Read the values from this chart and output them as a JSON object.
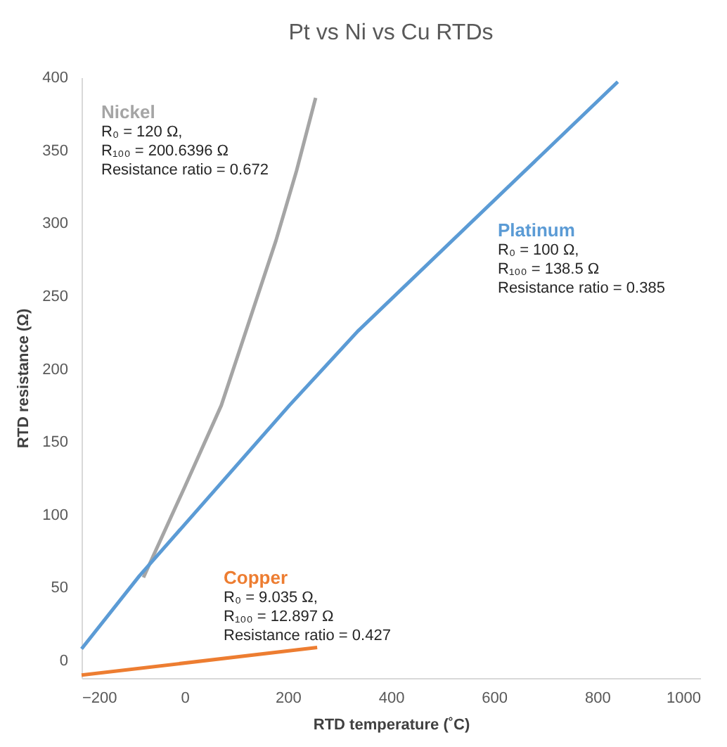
{
  "chart_data": {
    "type": "line",
    "title": "Pt vs Ni vs Cu RTDs",
    "xlabel": "RTD temperature (˚C)",
    "ylabel": "RTD resistance (Ω)",
    "xlim": [
      -200,
      1000
    ],
    "xticks": [
      -200,
      0,
      200,
      400,
      600,
      800,
      {
        "value": 1000,
        "label": "1000"
      }
    ],
    "ylim": [
      -12,
      400
    ],
    "yticks": [
      0,
      50,
      100,
      150,
      200,
      250,
      300,
      350,
      400
    ],
    "grid": false,
    "legend": false,
    "marker": "none",
    "line_style": "solid",
    "series": [
      {
        "name": "Nickel",
        "color": "#a5a5a5",
        "x": [
          -80,
          0,
          71,
          177,
          217,
          254
        ],
        "values": [
          57,
          119,
          175,
          288,
          336,
          386
        ]
      },
      {
        "name": "Platinum",
        "color": "#5b9bd5",
        "x": [
          -200,
          -88,
          203,
          336,
          840
        ],
        "values": [
          8,
          58,
          175,
          226,
          397
        ]
      },
      {
        "name": "Copper",
        "color": "#ed7d31",
        "x": [
          -200,
          257
        ],
        "values": [
          -10,
          9
        ]
      }
    ],
    "annotations": [
      "R₀ = 120 Ω,\nR₁₀₀ = 200.6396 Ω\nResistance ratio = 0.672",
      "R₀ = 100 Ω,\nR₁₀₀ = 138.5 Ω\nResistance ratio = 0.385",
      "R₀ = 9.035 Ω,\nR₁₀₀ = 12.897 Ω\nResistance ratio = 0.427"
    ]
  }
}
